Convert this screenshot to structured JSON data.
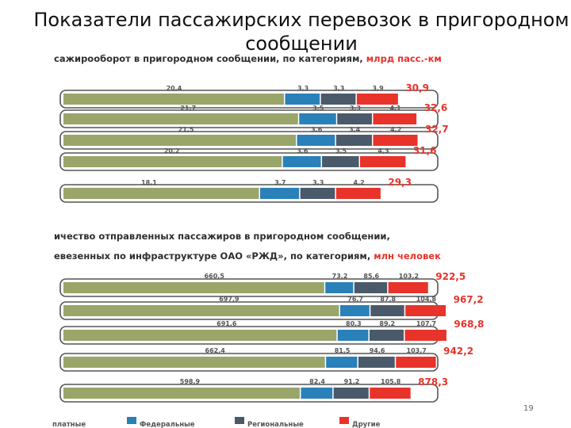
{
  "slide": {
    "title": "Показатели пассажирских перевозок в пригородном сообщении",
    "page_number": "19"
  },
  "colors": {
    "Платные": "#9aa56a",
    "Федеральные": "#2a80b9",
    "Региональные": "#4a5a6b",
    "Другие": "#e8332a",
    "total": "#e8332a"
  },
  "legend": {
    "items": [
      {
        "key": "Платные",
        "label": "платные"
      },
      {
        "key": "Федеральные",
        "label": "Федеральные"
      },
      {
        "key": "Региональные",
        "label": "Региональные"
      },
      {
        "key": "Другие",
        "label": "Другие"
      }
    ]
  },
  "chart_data": [
    {
      "type": "bar",
      "orientation": "horizontal",
      "stacked": true,
      "title_lines": [
        {
          "text": "сажирооборот в пригородном сообщении, по категориям, ",
          "unit": "млрд пасс.-км"
        }
      ],
      "series": [
        {
          "name": "Платные",
          "values": [
            20.4,
            21.7,
            21.5,
            20.2,
            18.1
          ],
          "labels": [
            "20,4",
            "21,7",
            "21,5",
            "20,2",
            "18,1"
          ]
        },
        {
          "name": "Федеральные",
          "values": [
            3.3,
            3.5,
            3.6,
            3.6,
            3.7
          ],
          "labels": [
            "3,3",
            "3,5",
            "3,6",
            "3,6",
            "3,7"
          ]
        },
        {
          "name": "Региональные",
          "values": [
            3.3,
            3.3,
            3.4,
            3.5,
            3.3
          ],
          "labels": [
            "3,3",
            "3,3",
            "3,4",
            "3,5",
            "3,3"
          ]
        },
        {
          "name": "Другие",
          "values": [
            3.9,
            4.1,
            4.2,
            4.3,
            4.2
          ],
          "labels": [
            "3,9",
            "4,1",
            "4,2",
            "4,3",
            "4,2"
          ]
        }
      ],
      "totals": [
        30.9,
        32.6,
        32.7,
        31.6,
        29.3
      ],
      "total_labels": [
        "30,9",
        "32,6",
        "32,7",
        "31,6",
        "29,3"
      ]
    },
    {
      "type": "bar",
      "orientation": "horizontal",
      "stacked": true,
      "title_lines": [
        {
          "text": "ичество отправленных пассажиров в пригородном сообщении,",
          "unit": ""
        },
        {
          "text": "евезенных по инфраструктуре ОАО «РЖД», по категориям, ",
          "unit": "млн человек"
        }
      ],
      "series": [
        {
          "name": "Платные",
          "values": [
            660.5,
            697.9,
            691.6,
            662.4,
            598.9
          ],
          "labels": [
            "660,5",
            "697,9",
            "691,6",
            "662,4",
            "598,9"
          ]
        },
        {
          "name": "Федеральные",
          "values": [
            73.2,
            76.7,
            80.3,
            81.5,
            82.4
          ],
          "labels": [
            "73,2",
            "76,7",
            "80,3",
            "81,5",
            "82,4"
          ]
        },
        {
          "name": "Региональные",
          "values": [
            85.6,
            87.8,
            89.2,
            94.6,
            91.2
          ],
          "labels": [
            "85,6",
            "87,8",
            "89,2",
            "94,6",
            "91,2"
          ]
        },
        {
          "name": "Другие",
          "values": [
            103.2,
            104.8,
            107.7,
            103.7,
            105.8
          ],
          "labels": [
            "103,2",
            "104,8",
            "107,7",
            "103,7",
            "105,8"
          ]
        }
      ],
      "totals": [
        922.5,
        967.2,
        968.8,
        942.2,
        878.3
      ],
      "total_labels": [
        "922,5",
        "967,2",
        "968,8",
        "942,2",
        "878,3"
      ]
    }
  ]
}
